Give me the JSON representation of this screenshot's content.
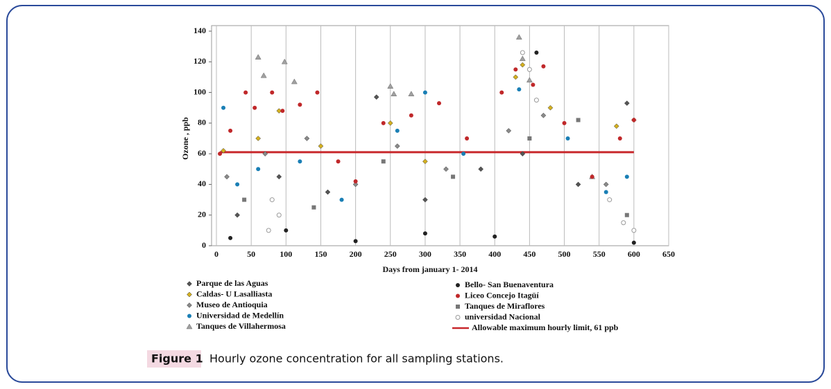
{
  "chart_data": {
    "type": "scatter",
    "y_label": "Ozone , ppb",
    "x_label": "Days from january 1- 2014",
    "xlim": [
      0,
      650
    ],
    "xticks": [
      0,
      50,
      100,
      150,
      200,
      250,
      300,
      350,
      400,
      450,
      500,
      550,
      600,
      650
    ],
    "ylim": [
      0,
      140
    ],
    "yticks": [
      0,
      20,
      40,
      60,
      80,
      100,
      120,
      140
    ],
    "grid": "x",
    "series": [
      {
        "name": "Parque de las Aguas",
        "color": "#555555",
        "marker": "diamond",
        "x": [
          30,
          90,
          160,
          230,
          300,
          380,
          440,
          520,
          590
        ],
        "y": [
          20,
          45,
          35,
          97,
          30,
          50,
          60,
          40,
          93
        ]
      },
      {
        "name": "Caldas- U Lasalliasta",
        "color": "#d4b020",
        "marker": "diamond",
        "x": [
          10,
          60,
          90,
          150,
          250,
          300,
          430,
          440,
          480,
          575,
          600
        ],
        "y": [
          62,
          70,
          88,
          65,
          80,
          55,
          110,
          118,
          90,
          78,
          82
        ]
      },
      {
        "name": "Museo de Antioquia",
        "color": "#8a8a8a",
        "marker": "diamond",
        "x": [
          15,
          70,
          130,
          200,
          260,
          330,
          420,
          470,
          560
        ],
        "y": [
          45,
          60,
          70,
          40,
          65,
          50,
          75,
          85,
          40
        ]
      },
      {
        "name": "Universidad de Medellín",
        "color": "#1a7fb5",
        "marker": "circle",
        "x": [
          10,
          30,
          60,
          120,
          180,
          260,
          300,
          355,
          435,
          505,
          560,
          590
        ],
        "y": [
          90,
          40,
          50,
          55,
          30,
          75,
          100,
          60,
          102,
          70,
          35,
          45
        ]
      },
      {
        "name": "Tanques de Villahermosa",
        "color": "#a0a0a0",
        "marker": "triangle",
        "x": [
          60,
          68,
          98,
          112,
          250,
          255,
          280,
          435,
          440,
          450,
          540
        ],
        "y": [
          123,
          111,
          120,
          107,
          104,
          99,
          99,
          136,
          122,
          108,
          45
        ]
      },
      {
        "name": "Bello- San Buenaventura",
        "color": "#222222",
        "marker": "circle",
        "x": [
          20,
          100,
          200,
          300,
          400,
          460,
          600
        ],
        "y": [
          5,
          10,
          3,
          8,
          6,
          126,
          2
        ]
      },
      {
        "name": "Liceo Concejo Itagüí",
        "color": "#c0282a",
        "marker": "circle",
        "x": [
          5,
          20,
          42,
          55,
          80,
          95,
          120,
          145,
          175,
          200,
          240,
          280,
          320,
          360,
          410,
          430,
          455,
          470,
          500,
          540,
          580,
          600
        ],
        "y": [
          60,
          75,
          100,
          90,
          100,
          88,
          92,
          100,
          55,
          42,
          80,
          85,
          93,
          70,
          100,
          115,
          105,
          117,
          80,
          45,
          70,
          82
        ]
      },
      {
        "name": "Tanques de Miraflores",
        "color": "#777777",
        "marker": "square",
        "x": [
          40,
          140,
          240,
          340,
          450,
          520,
          590
        ],
        "y": [
          30,
          25,
          55,
          45,
          70,
          82,
          20
        ]
      },
      {
        "name": "universidad Nacional",
        "color": "#9a9a9a",
        "marker": "open-circle",
        "x": [
          75,
          80,
          90,
          440,
          450,
          460,
          565,
          585,
          600
        ],
        "y": [
          10,
          30,
          20,
          126,
          115,
          95,
          30,
          15,
          10
        ]
      }
    ],
    "limit": {
      "name": "Allowable maximum hourly limit, 61 ppb",
      "value": 61,
      "color": "#c8272b"
    },
    "figure_label": "Figure 1",
    "caption": "Hourly ozone concentration for all sampling stations."
  }
}
